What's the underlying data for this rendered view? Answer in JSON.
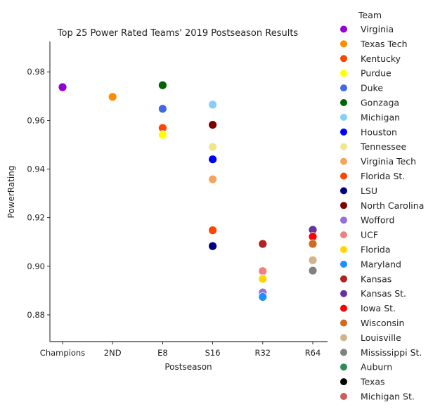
{
  "chart_data": {
    "type": "scatter",
    "title": "Top 25 Power Rated Teams' 2019 Postseason Results",
    "xlabel": "Postseason",
    "ylabel": "PowerRating",
    "categories": [
      "Champions",
      "2ND",
      "E8",
      "S16",
      "R32",
      "R64"
    ],
    "ylim": [
      0.869,
      0.9925
    ],
    "yticks": [
      "0.88",
      "0.90",
      "0.92",
      "0.94",
      "0.96",
      "0.98"
    ],
    "ytick_values": [
      0.88,
      0.9,
      0.92,
      0.94,
      0.96,
      0.98
    ],
    "grid": false,
    "legend_title": "Team",
    "legend_position": "right",
    "series": [
      {
        "name": "Virginia",
        "color": "#9400D3",
        "points": [
          {
            "x": "Champions",
            "y": 0.9737
          }
        ]
      },
      {
        "name": "Texas Tech",
        "color": "#FF8C00",
        "points": [
          {
            "x": "2ND",
            "y": 0.9697
          }
        ]
      },
      {
        "name": "Kentucky",
        "color": "#FF4500",
        "points": [
          {
            "x": "E8",
            "y": 0.9569
          }
        ]
      },
      {
        "name": "Purdue",
        "color": "#FFFF00",
        "points": [
          {
            "x": "E8",
            "y": 0.9541
          }
        ]
      },
      {
        "name": "Duke",
        "color": "#4169E1",
        "points": [
          {
            "x": "E8",
            "y": 0.9648
          }
        ]
      },
      {
        "name": "Gonzaga",
        "color": "#006400",
        "points": [
          {
            "x": "E8",
            "y": 0.9745
          }
        ]
      },
      {
        "name": "Michigan",
        "color": "#87CEFA",
        "points": [
          {
            "x": "S16",
            "y": 0.9665
          }
        ]
      },
      {
        "name": "Houston",
        "color": "#0000FF",
        "points": [
          {
            "x": "S16",
            "y": 0.944
          }
        ]
      },
      {
        "name": "Tennessee",
        "color": "#F0E68C",
        "points": [
          {
            "x": "S16",
            "y": 0.9491
          }
        ]
      },
      {
        "name": "Virginia Tech",
        "color": "#F4A460",
        "points": [
          {
            "x": "S16",
            "y": 0.9358
          }
        ]
      },
      {
        "name": "Florida St.",
        "color": "#FF4500",
        "points": [
          {
            "x": "S16",
            "y": 0.9148
          }
        ]
      },
      {
        "name": "LSU",
        "color": "#000080",
        "points": [
          {
            "x": "S16",
            "y": 0.9083
          }
        ]
      },
      {
        "name": "North Carolina",
        "color": "#800000",
        "points": [
          {
            "x": "S16",
            "y": 0.9582
          }
        ]
      },
      {
        "name": "Wofford",
        "color": "#9370DB",
        "points": [
          {
            "x": "R32",
            "y": 0.8892
          }
        ]
      },
      {
        "name": "UCF",
        "color": "#F08080",
        "points": [
          {
            "x": "R32",
            "y": 0.898
          }
        ]
      },
      {
        "name": "Florida",
        "color": "#FFD700",
        "points": [
          {
            "x": "R32",
            "y": 0.8948
          }
        ]
      },
      {
        "name": "Maryland",
        "color": "#1E90FF",
        "points": [
          {
            "x": "R32",
            "y": 0.8874
          }
        ]
      },
      {
        "name": "Kansas",
        "color": "#B22222",
        "points": [
          {
            "x": "R32",
            "y": 0.9092
          }
        ]
      },
      {
        "name": "Kansas St.",
        "color": "#663399",
        "points": [
          {
            "x": "R64",
            "y": 0.915
          }
        ]
      },
      {
        "name": "Iowa St.",
        "color": "#FF0000",
        "points": [
          {
            "x": "R64",
            "y": 0.9122
          }
        ]
      },
      {
        "name": "Wisconsin",
        "color": "#D2691E",
        "points": [
          {
            "x": "R64",
            "y": 0.9092
          }
        ]
      },
      {
        "name": "Louisville",
        "color": "#D2B48C",
        "points": [
          {
            "x": "R64",
            "y": 0.9025
          }
        ]
      },
      {
        "name": "Mississippi St.",
        "color": "#808080",
        "points": [
          {
            "x": "R64",
            "y": 0.8982
          }
        ]
      },
      {
        "name": "Auburn",
        "color": "#2E8B57",
        "points": []
      },
      {
        "name": "Texas",
        "color": "#000000",
        "points": []
      },
      {
        "name": "Michigan St.",
        "color": "#CD5C5C",
        "points": []
      }
    ]
  }
}
